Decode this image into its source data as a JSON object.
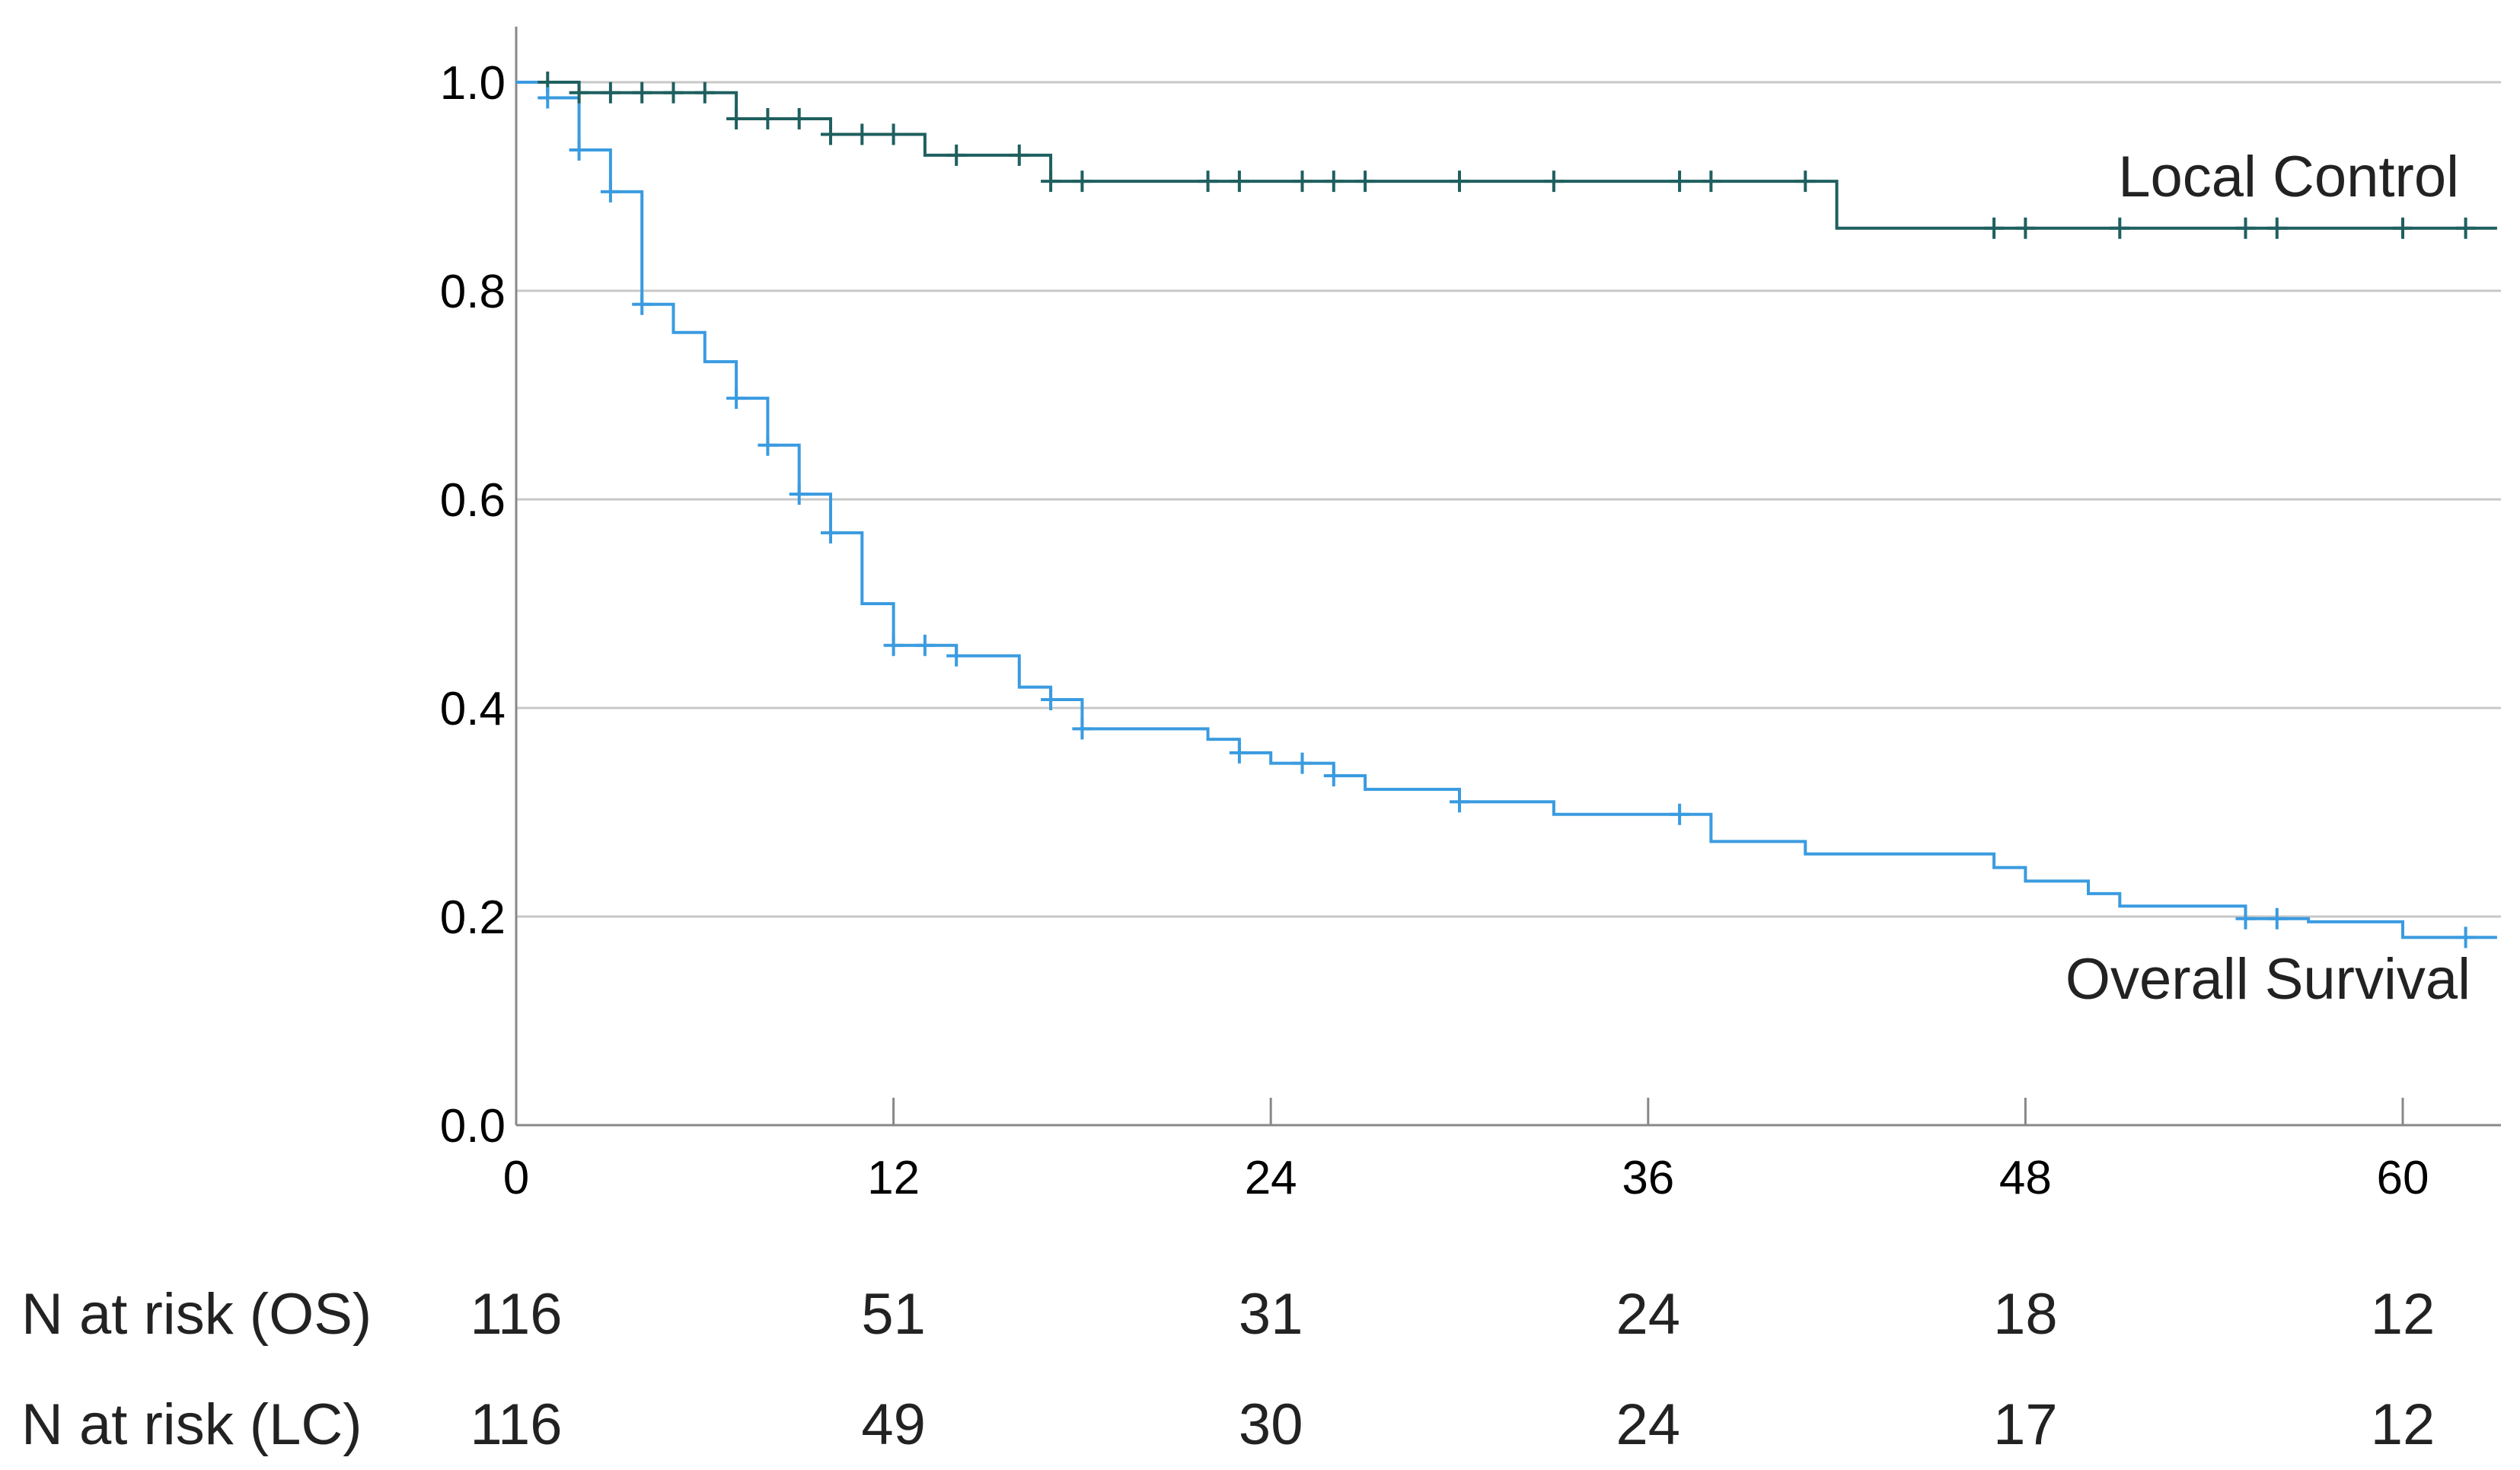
{
  "chart_data": {
    "type": "line",
    "subtype": "kaplan-meier",
    "title": "",
    "xlabel": "",
    "ylabel": "",
    "xlim": [
      0,
      63
    ],
    "ylim": [
      0,
      1.0
    ],
    "x_ticks": [
      "0",
      "12",
      "24",
      "36",
      "48",
      "60"
    ],
    "x_tick_values": [
      0,
      12,
      24,
      36,
      48,
      60
    ],
    "y_ticks": [
      "0.0",
      "0.2",
      "0.4",
      "0.6",
      "0.8",
      "1.0"
    ],
    "y_tick_values": [
      0,
      0.2,
      0.4,
      0.6,
      0.8,
      1.0
    ],
    "grid": "horizontal",
    "colors": {
      "lc": "#1f5f5f",
      "os": "#3a9be0",
      "grid": "#c8c8c8",
      "axis": "#888888"
    },
    "series": [
      {
        "name": "Local Control",
        "key": "lc",
        "steps": [
          [
            0,
            1.0
          ],
          [
            2,
            0.99
          ],
          [
            7,
            0.965
          ],
          [
            10,
            0.95
          ],
          [
            13,
            0.93
          ],
          [
            17,
            0.905
          ],
          [
            42,
            0.86
          ],
          [
            63,
            0.86
          ]
        ],
        "censor_x": [
          1,
          2,
          3,
          4,
          5,
          6,
          7,
          8,
          9,
          10,
          11,
          12,
          14,
          16,
          17,
          18,
          22,
          23,
          25,
          26,
          27,
          30,
          33,
          37,
          38,
          41,
          47,
          48,
          51,
          55,
          56,
          60,
          62
        ]
      },
      {
        "name": "Overall Survival",
        "key": "os",
        "steps": [
          [
            0,
            1.0
          ],
          [
            1,
            0.985
          ],
          [
            2,
            0.935
          ],
          [
            3,
            0.895
          ],
          [
            4,
            0.787
          ],
          [
            5,
            0.76
          ],
          [
            6,
            0.732
          ],
          [
            7,
            0.697
          ],
          [
            8,
            0.652
          ],
          [
            9,
            0.605
          ],
          [
            10,
            0.568
          ],
          [
            11,
            0.5
          ],
          [
            12,
            0.46
          ],
          [
            14,
            0.45
          ],
          [
            16,
            0.42
          ],
          [
            17,
            0.408
          ],
          [
            18,
            0.38
          ],
          [
            22,
            0.37
          ],
          [
            23,
            0.357
          ],
          [
            24,
            0.347
          ],
          [
            26,
            0.335
          ],
          [
            27,
            0.322
          ],
          [
            30,
            0.31
          ],
          [
            33,
            0.298
          ],
          [
            38,
            0.272
          ],
          [
            41,
            0.26
          ],
          [
            47,
            0.247
          ],
          [
            48,
            0.234
          ],
          [
            50,
            0.222
          ],
          [
            51,
            0.21
          ],
          [
            55,
            0.198
          ],
          [
            57,
            0.195
          ],
          [
            60,
            0.18
          ],
          [
            63,
            0.18
          ]
        ],
        "censor_x": [
          1,
          2,
          3,
          4,
          7,
          8,
          9,
          10,
          12,
          13,
          14,
          17,
          18,
          23,
          25,
          26,
          30,
          37,
          55,
          56,
          62
        ]
      }
    ],
    "annotations": [
      {
        "text": "Local Control",
        "series": "lc"
      },
      {
        "text": "Overall Survival",
        "series": "os"
      }
    ],
    "risk_table": {
      "time_points": [
        0,
        12,
        24,
        36,
        48,
        60
      ],
      "rows": [
        {
          "label": "N at risk (OS)",
          "values": [
            "116",
            "51",
            "31",
            "24",
            "18",
            "12"
          ]
        },
        {
          "label": "N at risk (LC)",
          "values": [
            "116",
            "49",
            "30",
            "24",
            "17",
            "12"
          ]
        }
      ]
    }
  }
}
